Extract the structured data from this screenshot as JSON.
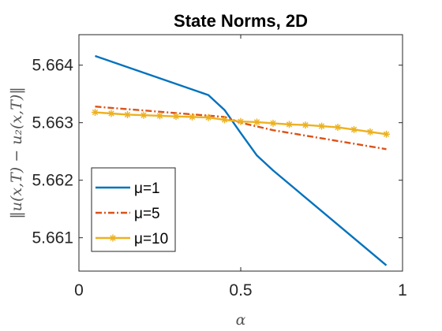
{
  "chart_data": {
    "type": "line",
    "title": "State Norms, 2D",
    "xlabel": "α",
    "ylabel": "‖u(x,T) − u₂(x,T)‖",
    "xlim": [
      0,
      1
    ],
    "ylim": [
      5.66042,
      5.66453
    ],
    "xticks": [
      0,
      0.5,
      1
    ],
    "xtick_labels": [
      "0",
      "0.5",
      "1"
    ],
    "yticks": [
      5.661,
      5.662,
      5.663,
      5.664
    ],
    "ytick_labels": [
      "5.661",
      "5.662",
      "5.663",
      "5.664"
    ],
    "grid": false,
    "legend_position": "bottom-left",
    "series": [
      {
        "name": "μ=1",
        "color": "#0072BD",
        "style": "solid",
        "marker": "none",
        "x": [
          0.05,
          0.4,
          0.45,
          0.5,
          0.55,
          0.6,
          0.95
        ],
        "y": [
          5.66416,
          5.66348,
          5.66322,
          5.66282,
          5.66243,
          5.66217,
          5.66052
        ]
      },
      {
        "name": "μ=5",
        "color": "#D95319",
        "style": "dash-dot",
        "marker": "none",
        "x": [
          0.05,
          0.45,
          0.5,
          0.6,
          0.95
        ],
        "y": [
          5.66328,
          5.6631,
          5.663,
          5.66287,
          5.66254
        ]
      },
      {
        "name": "μ=10",
        "color": "#EDB120",
        "style": "solid",
        "marker": "star",
        "x": [
          0.05,
          0.1,
          0.15,
          0.2,
          0.25,
          0.3,
          0.35,
          0.4,
          0.45,
          0.5,
          0.55,
          0.6,
          0.65,
          0.7,
          0.75,
          0.8,
          0.85,
          0.9,
          0.95
        ],
        "y": [
          5.66318,
          5.66316,
          5.66314,
          5.66313,
          5.66312,
          5.66311,
          5.6631,
          5.66309,
          5.66305,
          5.66302,
          5.66301,
          5.66299,
          5.66297,
          5.66296,
          5.66294,
          5.66292,
          5.66288,
          5.66284,
          5.6628
        ]
      }
    ]
  }
}
